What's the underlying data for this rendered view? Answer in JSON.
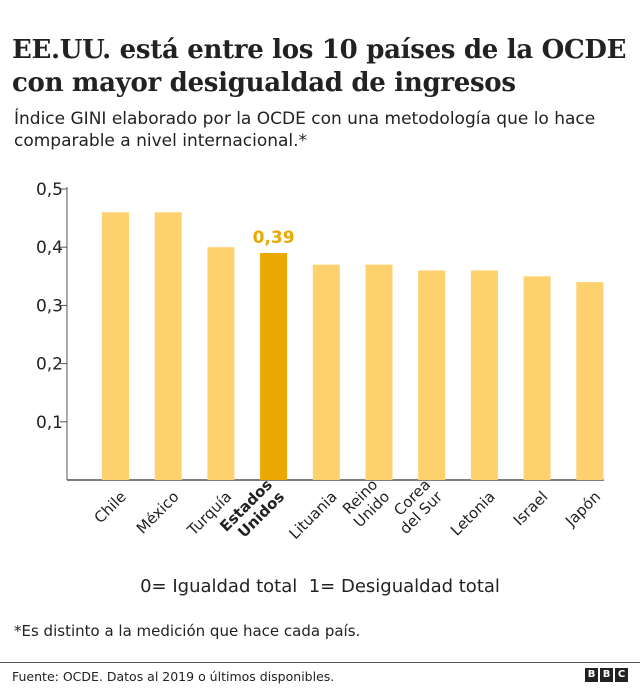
{
  "title": "EE.UU. está entre los 10 países de la OCDE con mayor desigualdad de ingresos",
  "subtitle": "Índice GINI elaborado por la OCDE con una metodología que lo hace comparable a nivel internacional.*",
  "legend_text": "0= Igualdad total  1= Desigualdad total",
  "note": "*Es distinto a la medición que hace cada país.",
  "source": "Fuente: OCDE. Datos al 2019 o últimos disponibles.",
  "logo": "BBC",
  "colors": {
    "bar": "#fdd16e",
    "highlight": "#eba800",
    "axis": "#555555"
  },
  "chart_data": {
    "type": "bar",
    "categories": [
      "Chile",
      "México",
      "Turquía",
      "Estados Unidos",
      "Lituania",
      "Reino Unido",
      "Corea del Sur",
      "Letonia",
      "Israel",
      "Japón"
    ],
    "category_lines": [
      [
        "Chile"
      ],
      [
        "México"
      ],
      [
        "Turquía"
      ],
      [
        "Estados",
        "Unidos"
      ],
      [
        "Lituania"
      ],
      [
        "Reino",
        "Unido"
      ],
      [
        "Corea",
        "del Sur"
      ],
      [
        "Letonia"
      ],
      [
        "Israel"
      ],
      [
        "Japón"
      ]
    ],
    "values": [
      0.46,
      0.46,
      0.4,
      0.39,
      0.37,
      0.37,
      0.36,
      0.36,
      0.35,
      0.34
    ],
    "highlight_index": 3,
    "data_labels": {
      "3": "0,39"
    },
    "ylim": [
      0,
      0.5
    ],
    "yticks": [
      0.1,
      0.2,
      0.3,
      0.4,
      0.5
    ],
    "ytick_labels": [
      "0,1",
      "0,2",
      "0,3",
      "0,4",
      "0,5"
    ],
    "grid": false
  }
}
